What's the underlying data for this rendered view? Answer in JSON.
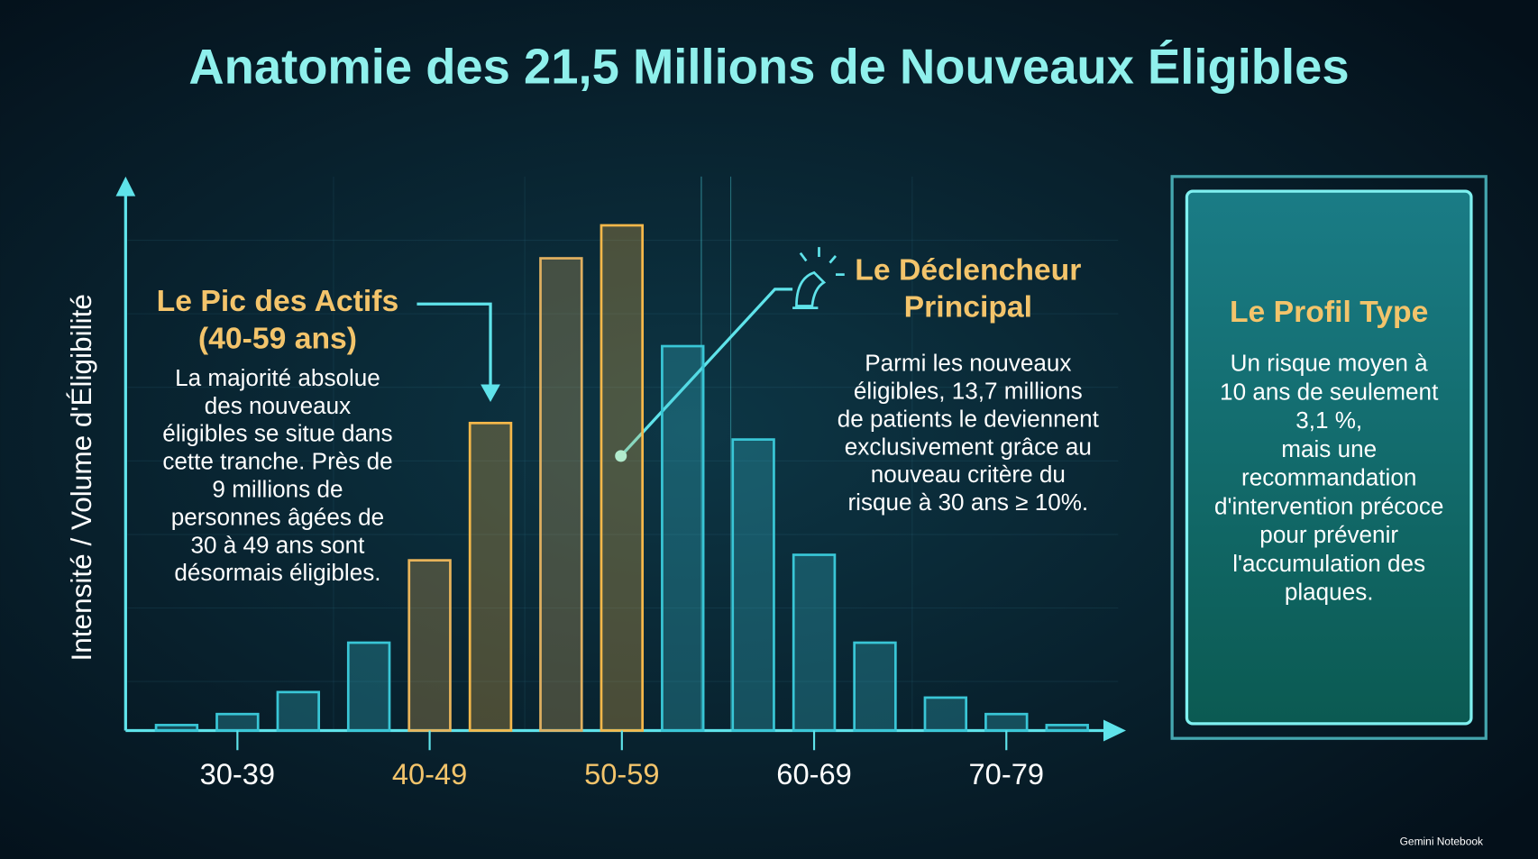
{
  "chart_data": {
    "type": "bar",
    "title": "Anatomie des 21,5 Millions de Nouveaux Éligibles",
    "y_label": "Intensité / Volume d'Éligibilité",
    "categories": [
      null,
      "30-39",
      null,
      null,
      "40-49",
      null,
      null,
      "50-59",
      null,
      null,
      "60-69",
      null,
      null,
      "70-79",
      null
    ],
    "values": [
      1,
      3,
      7,
      16,
      31,
      56,
      86,
      92,
      70,
      53,
      32,
      16,
      6,
      3,
      1
    ],
    "colors": [
      "#39c6d6",
      "#39c6d6",
      "#39c6d6",
      "#39c6d6",
      "#e9b45a",
      "#f5b84a",
      "#e0b060",
      "#f5b84a",
      "#39c6d6",
      "#39c6d6",
      "#39c6d6",
      "#39c6d6",
      "#39c6d6",
      "#39c6d6",
      "#39c6d6"
    ],
    "ylim": [
      0,
      100
    ],
    "annotations": [
      {
        "title": [
          "Le Pic des Actifs",
          "(40-59 ans)"
        ],
        "text": [
          "La majorité absolue",
          "des nouveaux",
          "éligibles se situe dans",
          "cette tranche. Près de",
          "9 millions de",
          "personnes âgées de",
          "30 à 49 ans sont",
          "désormais éligibles."
        ]
      },
      {
        "title": [
          "Le Déclencheur",
          "Principal"
        ],
        "text": [
          "Parmi les nouveaux",
          "éligibles, 13,7 millions",
          "de patients le deviennent",
          "exclusivement grâce au",
          "nouveau critère du",
          "risque à 30 ans ≥ 10%."
        ]
      }
    ],
    "panel": {
      "title": "Le Profil Type",
      "text": [
        "Un risque moyen à",
        "10 ans de seulement",
        "3,1 %,",
        "mais une",
        "recommandation",
        "d'intervention précoce",
        "pour prévenir",
        "l'accumulation des",
        "plaques."
      ]
    },
    "footer": "Gemini Notebook"
  }
}
